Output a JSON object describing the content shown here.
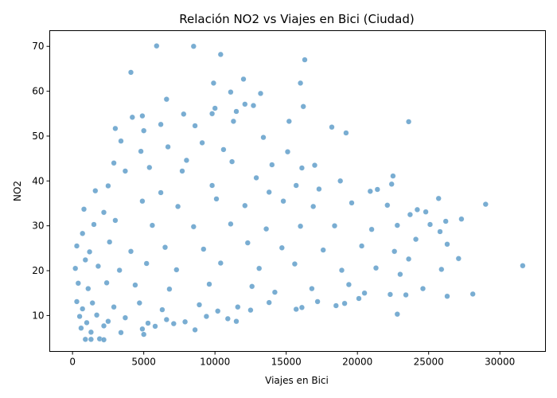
{
  "chart_data": {
    "type": "scatter",
    "title": "Relación NO2 vs Viajes en Bici (Ciudad)",
    "xlabel": "Viajes en Bici",
    "ylabel": "NO2",
    "xlim": [
      -1600,
      33200
    ],
    "ylim": [
      2.0,
      73.5
    ],
    "xticks": [
      0,
      5000,
      10000,
      15000,
      20000,
      25000,
      30000
    ],
    "yticks": [
      10,
      20,
      30,
      40,
      50,
      60,
      70
    ],
    "grid": false,
    "point_color": "#1f77b4",
    "series": [
      {
        "points": [
          [
            5900,
            70.1
          ],
          [
            8500,
            70.0
          ],
          [
            10400,
            68.2
          ],
          [
            4100,
            64.2
          ],
          [
            16300,
            67.0
          ],
          [
            12000,
            62.7
          ],
          [
            9900,
            61.8
          ],
          [
            16000,
            61.8
          ],
          [
            13200,
            59.5
          ],
          [
            11100,
            59.8
          ],
          [
            6600,
            58.2
          ],
          [
            9800,
            55.0
          ],
          [
            7800,
            54.9
          ],
          [
            11500,
            55.5
          ],
          [
            12100,
            57.1
          ],
          [
            4900,
            54.5
          ],
          [
            4200,
            54.2
          ],
          [
            10000,
            56.2
          ],
          [
            12700,
            56.8
          ],
          [
            16200,
            56.6
          ],
          [
            3000,
            51.7
          ],
          [
            5000,
            51.2
          ],
          [
            6200,
            52.6
          ],
          [
            8600,
            52.3
          ],
          [
            11300,
            53.3
          ],
          [
            13400,
            49.7
          ],
          [
            15200,
            53.3
          ],
          [
            18200,
            52.0
          ],
          [
            19200,
            50.7
          ],
          [
            23600,
            53.2
          ],
          [
            3400,
            48.9
          ],
          [
            6700,
            47.6
          ],
          [
            9100,
            48.5
          ],
          [
            10600,
            47.0
          ],
          [
            15100,
            46.5
          ],
          [
            4800,
            46.6
          ],
          [
            5400,
            43.0
          ],
          [
            8000,
            44.6
          ],
          [
            11200,
            44.3
          ],
          [
            14000,
            43.6
          ],
          [
            2900,
            44.0
          ],
          [
            3700,
            42.2
          ],
          [
            7700,
            42.2
          ],
          [
            12900,
            40.7
          ],
          [
            17000,
            43.5
          ],
          [
            16100,
            42.9
          ],
          [
            18800,
            40.0
          ],
          [
            20900,
            37.7
          ],
          [
            22500,
            41.1
          ],
          [
            22400,
            39.3
          ],
          [
            1600,
            37.8
          ],
          [
            2500,
            38.9
          ],
          [
            6200,
            37.4
          ],
          [
            9800,
            39.0
          ],
          [
            13800,
            37.5
          ],
          [
            15700,
            39.0
          ],
          [
            17300,
            38.2
          ],
          [
            21400,
            38.1
          ],
          [
            25700,
            36.1
          ],
          [
            29000,
            34.8
          ],
          [
            800,
            33.7
          ],
          [
            2200,
            33.0
          ],
          [
            4900,
            35.5
          ],
          [
            7400,
            34.3
          ],
          [
            10100,
            36.0
          ],
          [
            12100,
            34.5
          ],
          [
            14800,
            35.5
          ],
          [
            16900,
            34.3
          ],
          [
            19600,
            35.1
          ],
          [
            22100,
            34.6
          ],
          [
            24200,
            33.6
          ],
          [
            24800,
            33.1
          ],
          [
            26200,
            31.0
          ],
          [
            27300,
            31.5
          ],
          [
            23700,
            32.5
          ],
          [
            700,
            28.3
          ],
          [
            1500,
            30.3
          ],
          [
            3000,
            31.2
          ],
          [
            5600,
            30.1
          ],
          [
            8500,
            29.8
          ],
          [
            11100,
            30.4
          ],
          [
            13600,
            29.3
          ],
          [
            16000,
            29.9
          ],
          [
            18400,
            30.0
          ],
          [
            21000,
            29.2
          ],
          [
            25100,
            30.3
          ],
          [
            22800,
            30.1
          ],
          [
            24100,
            27.0
          ],
          [
            26300,
            25.9
          ],
          [
            25800,
            28.7
          ],
          [
            300,
            25.5
          ],
          [
            1200,
            24.2
          ],
          [
            2600,
            26.4
          ],
          [
            4100,
            24.3
          ],
          [
            6500,
            25.2
          ],
          [
            9200,
            24.8
          ],
          [
            12300,
            26.2
          ],
          [
            14700,
            25.1
          ],
          [
            17600,
            24.6
          ],
          [
            20300,
            25.5
          ],
          [
            22600,
            24.3
          ],
          [
            23600,
            22.6
          ],
          [
            25900,
            20.3
          ],
          [
            27100,
            22.7
          ],
          [
            31600,
            21.1
          ],
          [
            200,
            20.5
          ],
          [
            900,
            22.4
          ],
          [
            1800,
            21.0
          ],
          [
            3300,
            20.1
          ],
          [
            5200,
            21.6
          ],
          [
            7300,
            20.2
          ],
          [
            10400,
            21.7
          ],
          [
            13100,
            20.5
          ],
          [
            15600,
            21.5
          ],
          [
            18900,
            20.1
          ],
          [
            21300,
            20.6
          ],
          [
            23000,
            19.2
          ],
          [
            24600,
            16.0
          ],
          [
            26300,
            14.3
          ],
          [
            28100,
            14.8
          ],
          [
            400,
            17.2
          ],
          [
            1100,
            16.0
          ],
          [
            2400,
            17.3
          ],
          [
            4400,
            16.8
          ],
          [
            6800,
            15.9
          ],
          [
            9600,
            17.0
          ],
          [
            12600,
            16.5
          ],
          [
            14200,
            15.2
          ],
          [
            16800,
            16.0
          ],
          [
            19400,
            16.9
          ],
          [
            20500,
            15.0
          ],
          [
            22300,
            14.7
          ],
          [
            23400,
            14.6
          ],
          [
            22800,
            10.3
          ],
          [
            19100,
            12.7
          ],
          [
            300,
            13.1
          ],
          [
            700,
            11.5
          ],
          [
            1400,
            12.8
          ],
          [
            2900,
            11.9
          ],
          [
            4700,
            12.8
          ],
          [
            6300,
            11.3
          ],
          [
            8900,
            12.4
          ],
          [
            11600,
            11.9
          ],
          [
            13800,
            12.9
          ],
          [
            16100,
            11.8
          ],
          [
            17200,
            13.1
          ],
          [
            18500,
            12.2
          ],
          [
            20100,
            13.8
          ],
          [
            15700,
            11.4
          ],
          [
            12500,
            11.2
          ],
          [
            500,
            9.8
          ],
          [
            1000,
            8.4
          ],
          [
            1700,
            10.1
          ],
          [
            2500,
            8.7
          ],
          [
            3700,
            9.5
          ],
          [
            5300,
            8.3
          ],
          [
            6600,
            9.1
          ],
          [
            7900,
            8.6
          ],
          [
            9400,
            9.8
          ],
          [
            10900,
            9.3
          ],
          [
            600,
            7.2
          ],
          [
            1300,
            6.3
          ],
          [
            2200,
            7.7
          ],
          [
            3400,
            6.2
          ],
          [
            4900,
            7.0
          ],
          [
            5800,
            7.6
          ],
          [
            7100,
            8.2
          ],
          [
            8600,
            6.8
          ],
          [
            900,
            4.7
          ],
          [
            1300,
            4.7
          ],
          [
            1900,
            4.8
          ],
          [
            2200,
            4.6
          ],
          [
            5000,
            5.8
          ],
          [
            10200,
            11.0
          ],
          [
            11500,
            8.7
          ]
        ]
      }
    ]
  }
}
